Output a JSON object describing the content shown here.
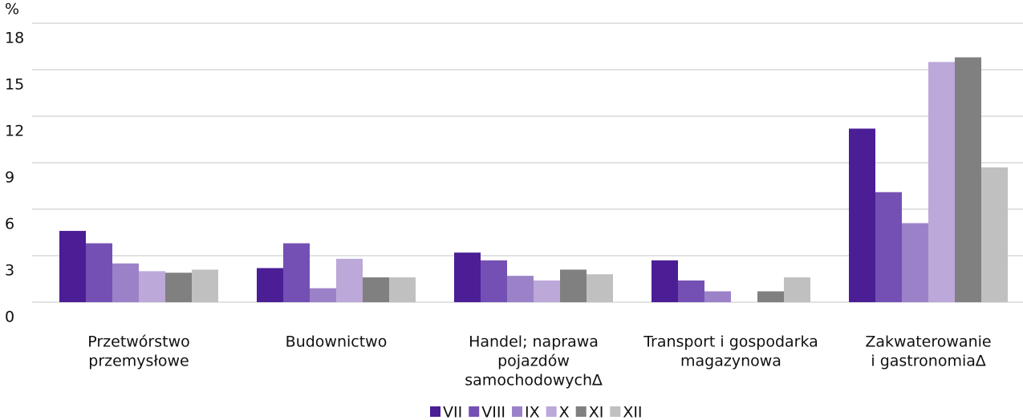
{
  "chart_data": {
    "type": "bar",
    "y_unit": "%",
    "categories": [
      [
        "Przetwórstwo",
        "przemysłowe"
      ],
      [
        "Budownictwo"
      ],
      [
        "Handel; naprawa",
        "pojazdów",
        "samochodowych∆"
      ],
      [
        "Transport i gospodarka",
        "magazynowa"
      ],
      [
        "Zakwaterowanie",
        "i gastronomia∆"
      ]
    ],
    "series": [
      {
        "name": "VII",
        "color": "#4b1e96",
        "values": [
          4.6,
          2.2,
          3.2,
          2.7,
          11.2
        ]
      },
      {
        "name": "VIII",
        "color": "#7450b4",
        "values": [
          3.8,
          3.8,
          2.7,
          1.4,
          7.1
        ]
      },
      {
        "name": "IX",
        "color": "#9b82c8",
        "values": [
          2.5,
          0.9,
          1.7,
          0.7,
          5.1
        ]
      },
      {
        "name": "X",
        "color": "#bca8d9",
        "values": [
          2.0,
          2.8,
          1.4,
          null,
          15.5
        ]
      },
      {
        "name": "XI",
        "color": "#808080",
        "values": [
          1.9,
          1.6,
          2.1,
          0.7,
          15.8
        ]
      },
      {
        "name": "XII",
        "color": "#c0c0c0",
        "values": [
          2.1,
          1.6,
          1.8,
          1.6,
          8.7
        ]
      }
    ],
    "ylim": [
      0,
      18
    ],
    "yticks": [
      0,
      3,
      6,
      9,
      12,
      15,
      18
    ],
    "grid": true,
    "legend": "bottom"
  }
}
